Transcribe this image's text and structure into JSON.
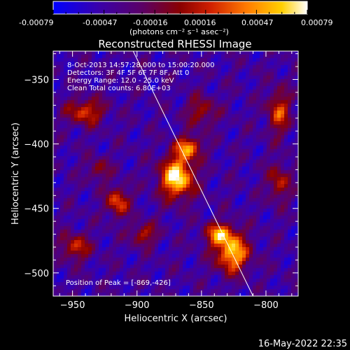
{
  "chart_data": {
    "type": "heatmap",
    "title": "Reconstructed RHESSI Image",
    "xlabel": "Heliocentric X (arcsec)",
    "ylabel": "Heliocentric Y (arcsec)",
    "xlim": [
      -965,
      -775
    ],
    "ylim": [
      -518,
      -328
    ],
    "xticks": [
      -950,
      -900,
      -850,
      -800
    ],
    "yticks": [
      -350,
      -400,
      -450,
      -500
    ],
    "colorbar": {
      "min": -0.00079,
      "max": 0.00079,
      "ticks": [
        "-0.00079",
        "-0.00047",
        "-0.00016",
        "0.00016",
        "0.00047",
        "0.00079"
      ],
      "label": "(photons cm⁻² s⁻¹ asec⁻²)",
      "colormap": [
        "#0000ff",
        "#3a00aa",
        "#5b0066",
        "#8a0000",
        "#d02000",
        "#ff7a00",
        "#ffd000",
        "#ffffff"
      ]
    },
    "info_lines": [
      "8-Oct-2013 14:57:28.000 to 15:00:20.000",
      "Detectors: 3F 4F 5F 6F 7F 8F, Att 0",
      "Energy Range: 12.0 - 25.0 keV",
      "Clean     Total counts: 6.80E+03"
    ],
    "peak_label": "Position of Peak = [-869,-426]",
    "peak": [
      -869,
      -426
    ],
    "sources": [
      {
        "x": -869,
        "y": -426,
        "amp": 1.0,
        "sx": 9,
        "sy": 11
      },
      {
        "x": -860,
        "y": -403,
        "amp": 0.7,
        "sx": 7,
        "sy": 6
      },
      {
        "x": -826,
        "y": -485,
        "amp": 0.85,
        "sx": 9,
        "sy": 10
      },
      {
        "x": -836,
        "y": -470,
        "amp": 0.7,
        "sx": 8,
        "sy": 6
      },
      {
        "x": -915,
        "y": -445,
        "amp": 0.6,
        "sx": 6,
        "sy": 8
      },
      {
        "x": -940,
        "y": -375,
        "amp": 0.55,
        "sx": 10,
        "sy": 7
      },
      {
        "x": -948,
        "y": -480,
        "amp": 0.5,
        "sx": 8,
        "sy": 7
      },
      {
        "x": -895,
        "y": -470,
        "amp": 0.45,
        "sx": 7,
        "sy": 6
      },
      {
        "x": -790,
        "y": -375,
        "amp": 0.55,
        "sx": 6,
        "sy": 12
      },
      {
        "x": -790,
        "y": -430,
        "amp": 0.45,
        "sx": 6,
        "sy": 10
      },
      {
        "x": -850,
        "y": -375,
        "amp": 0.4,
        "sx": 8,
        "sy": 8
      },
      {
        "x": -930,
        "y": -420,
        "amp": 0.35,
        "sx": 6,
        "sy": 6
      }
    ],
    "limb_line": [
      [
        -903,
        -328
      ],
      [
        -810,
        -518
      ]
    ]
  },
  "timestamp": "16-May-2022 22:35"
}
